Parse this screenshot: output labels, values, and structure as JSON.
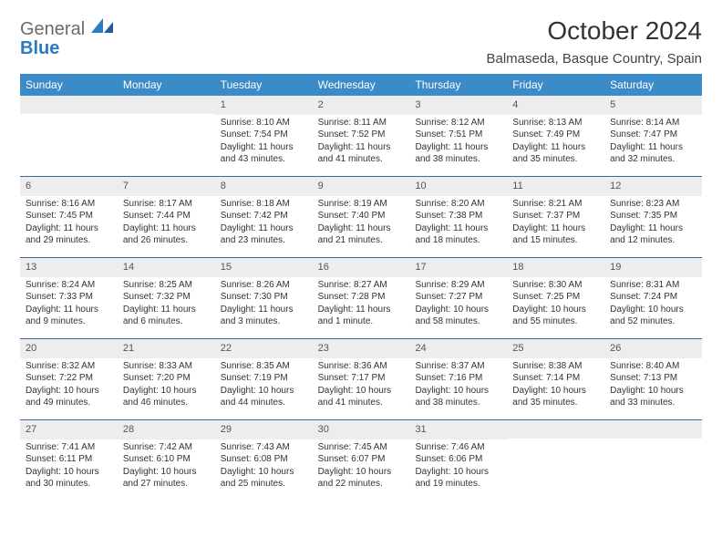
{
  "logo": {
    "word1": "General",
    "word2": "Blue"
  },
  "title": "October 2024",
  "location": "Balmaseda, Basque Country, Spain",
  "colors": {
    "header_bg": "#3b8bc9",
    "header_text": "#ffffff",
    "daynum_bg": "#ededed",
    "border": "#3b6a9a",
    "logo_gray": "#6b6b6b",
    "logo_blue": "#2a7bbf"
  },
  "days_of_week": [
    "Sunday",
    "Monday",
    "Tuesday",
    "Wednesday",
    "Thursday",
    "Friday",
    "Saturday"
  ],
  "weeks": [
    [
      null,
      null,
      {
        "n": "1",
        "sunrise": "Sunrise: 8:10 AM",
        "sunset": "Sunset: 7:54 PM",
        "daylight": "Daylight: 11 hours and 43 minutes."
      },
      {
        "n": "2",
        "sunrise": "Sunrise: 8:11 AM",
        "sunset": "Sunset: 7:52 PM",
        "daylight": "Daylight: 11 hours and 41 minutes."
      },
      {
        "n": "3",
        "sunrise": "Sunrise: 8:12 AM",
        "sunset": "Sunset: 7:51 PM",
        "daylight": "Daylight: 11 hours and 38 minutes."
      },
      {
        "n": "4",
        "sunrise": "Sunrise: 8:13 AM",
        "sunset": "Sunset: 7:49 PM",
        "daylight": "Daylight: 11 hours and 35 minutes."
      },
      {
        "n": "5",
        "sunrise": "Sunrise: 8:14 AM",
        "sunset": "Sunset: 7:47 PM",
        "daylight": "Daylight: 11 hours and 32 minutes."
      }
    ],
    [
      {
        "n": "6",
        "sunrise": "Sunrise: 8:16 AM",
        "sunset": "Sunset: 7:45 PM",
        "daylight": "Daylight: 11 hours and 29 minutes."
      },
      {
        "n": "7",
        "sunrise": "Sunrise: 8:17 AM",
        "sunset": "Sunset: 7:44 PM",
        "daylight": "Daylight: 11 hours and 26 minutes."
      },
      {
        "n": "8",
        "sunrise": "Sunrise: 8:18 AM",
        "sunset": "Sunset: 7:42 PM",
        "daylight": "Daylight: 11 hours and 23 minutes."
      },
      {
        "n": "9",
        "sunrise": "Sunrise: 8:19 AM",
        "sunset": "Sunset: 7:40 PM",
        "daylight": "Daylight: 11 hours and 21 minutes."
      },
      {
        "n": "10",
        "sunrise": "Sunrise: 8:20 AM",
        "sunset": "Sunset: 7:38 PM",
        "daylight": "Daylight: 11 hours and 18 minutes."
      },
      {
        "n": "11",
        "sunrise": "Sunrise: 8:21 AM",
        "sunset": "Sunset: 7:37 PM",
        "daylight": "Daylight: 11 hours and 15 minutes."
      },
      {
        "n": "12",
        "sunrise": "Sunrise: 8:23 AM",
        "sunset": "Sunset: 7:35 PM",
        "daylight": "Daylight: 11 hours and 12 minutes."
      }
    ],
    [
      {
        "n": "13",
        "sunrise": "Sunrise: 8:24 AM",
        "sunset": "Sunset: 7:33 PM",
        "daylight": "Daylight: 11 hours and 9 minutes."
      },
      {
        "n": "14",
        "sunrise": "Sunrise: 8:25 AM",
        "sunset": "Sunset: 7:32 PM",
        "daylight": "Daylight: 11 hours and 6 minutes."
      },
      {
        "n": "15",
        "sunrise": "Sunrise: 8:26 AM",
        "sunset": "Sunset: 7:30 PM",
        "daylight": "Daylight: 11 hours and 3 minutes."
      },
      {
        "n": "16",
        "sunrise": "Sunrise: 8:27 AM",
        "sunset": "Sunset: 7:28 PM",
        "daylight": "Daylight: 11 hours and 1 minute."
      },
      {
        "n": "17",
        "sunrise": "Sunrise: 8:29 AM",
        "sunset": "Sunset: 7:27 PM",
        "daylight": "Daylight: 10 hours and 58 minutes."
      },
      {
        "n": "18",
        "sunrise": "Sunrise: 8:30 AM",
        "sunset": "Sunset: 7:25 PM",
        "daylight": "Daylight: 10 hours and 55 minutes."
      },
      {
        "n": "19",
        "sunrise": "Sunrise: 8:31 AM",
        "sunset": "Sunset: 7:24 PM",
        "daylight": "Daylight: 10 hours and 52 minutes."
      }
    ],
    [
      {
        "n": "20",
        "sunrise": "Sunrise: 8:32 AM",
        "sunset": "Sunset: 7:22 PM",
        "daylight": "Daylight: 10 hours and 49 minutes."
      },
      {
        "n": "21",
        "sunrise": "Sunrise: 8:33 AM",
        "sunset": "Sunset: 7:20 PM",
        "daylight": "Daylight: 10 hours and 46 minutes."
      },
      {
        "n": "22",
        "sunrise": "Sunrise: 8:35 AM",
        "sunset": "Sunset: 7:19 PM",
        "daylight": "Daylight: 10 hours and 44 minutes."
      },
      {
        "n": "23",
        "sunrise": "Sunrise: 8:36 AM",
        "sunset": "Sunset: 7:17 PM",
        "daylight": "Daylight: 10 hours and 41 minutes."
      },
      {
        "n": "24",
        "sunrise": "Sunrise: 8:37 AM",
        "sunset": "Sunset: 7:16 PM",
        "daylight": "Daylight: 10 hours and 38 minutes."
      },
      {
        "n": "25",
        "sunrise": "Sunrise: 8:38 AM",
        "sunset": "Sunset: 7:14 PM",
        "daylight": "Daylight: 10 hours and 35 minutes."
      },
      {
        "n": "26",
        "sunrise": "Sunrise: 8:40 AM",
        "sunset": "Sunset: 7:13 PM",
        "daylight": "Daylight: 10 hours and 33 minutes."
      }
    ],
    [
      {
        "n": "27",
        "sunrise": "Sunrise: 7:41 AM",
        "sunset": "Sunset: 6:11 PM",
        "daylight": "Daylight: 10 hours and 30 minutes."
      },
      {
        "n": "28",
        "sunrise": "Sunrise: 7:42 AM",
        "sunset": "Sunset: 6:10 PM",
        "daylight": "Daylight: 10 hours and 27 minutes."
      },
      {
        "n": "29",
        "sunrise": "Sunrise: 7:43 AM",
        "sunset": "Sunset: 6:08 PM",
        "daylight": "Daylight: 10 hours and 25 minutes."
      },
      {
        "n": "30",
        "sunrise": "Sunrise: 7:45 AM",
        "sunset": "Sunset: 6:07 PM",
        "daylight": "Daylight: 10 hours and 22 minutes."
      },
      {
        "n": "31",
        "sunrise": "Sunrise: 7:46 AM",
        "sunset": "Sunset: 6:06 PM",
        "daylight": "Daylight: 10 hours and 19 minutes."
      },
      null,
      null
    ]
  ]
}
